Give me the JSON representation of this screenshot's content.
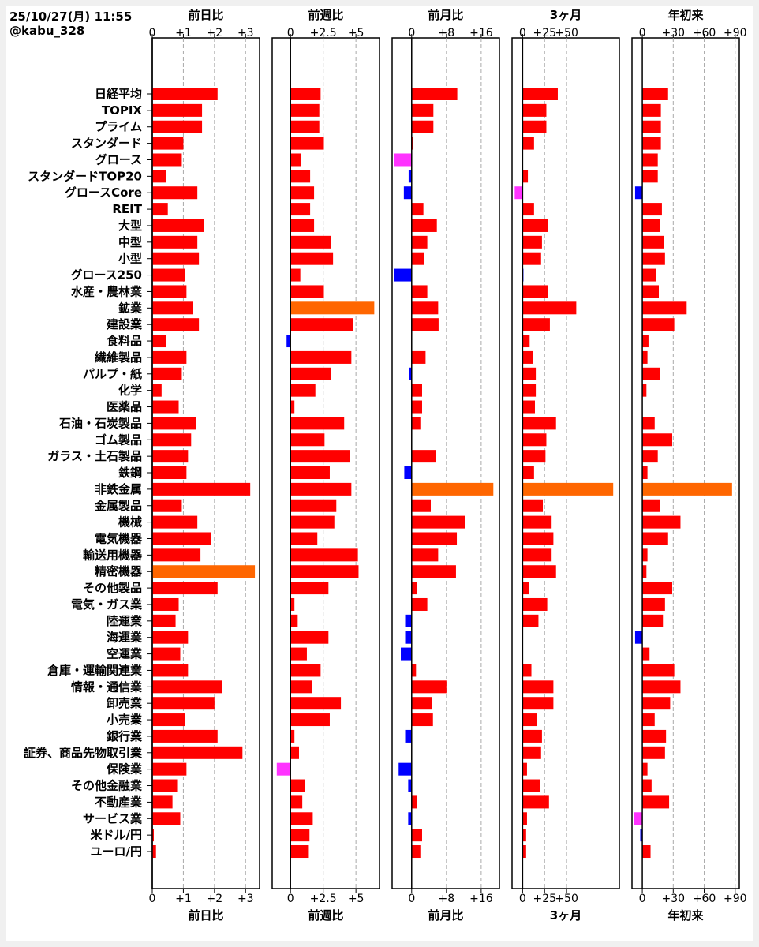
{
  "header": {
    "timestamp": "25/10/27(月) 11:55",
    "account": "@kabu_328"
  },
  "colors": {
    "positive": "#ff0000",
    "negative": "#0000ff",
    "max": "#ff6600",
    "min": "#ff33ff",
    "grid": "#aaaaaa"
  },
  "chart_data": {
    "type": "bar",
    "orientation": "horizontal",
    "categories": [
      "日経平均",
      "TOPIX",
      "プライム",
      "スタンダード",
      "グロース",
      "スタンダードTOP20",
      "グロースCore",
      "REIT",
      "大型",
      "中型",
      "小型",
      "グロース250",
      "水産・農林業",
      "鉱業",
      "建設業",
      "食料品",
      "繊維製品",
      "パルプ・紙",
      "化学",
      "医薬品",
      "石油・石炭製品",
      "ゴム製品",
      "ガラス・土石製品",
      "鉄鋼",
      "非鉄金属",
      "金属製品",
      "機械",
      "電気機器",
      "輸送用機器",
      "精密機器",
      "その他製品",
      "電気・ガス業",
      "陸運業",
      "海運業",
      "空運業",
      "倉庫・運輸関連業",
      "情報・通信業",
      "卸売業",
      "小売業",
      "銀行業",
      "証券、商品先物取引業",
      "保険業",
      "その他金融業",
      "不動産業",
      "サービス業",
      "米ドル/円",
      "ユーロ/円"
    ],
    "panels": [
      {
        "title": "前日比",
        "xlim": [
          0,
          3.45
        ],
        "ticks": [
          0,
          1,
          2,
          3
        ],
        "tick_labels": [
          "0",
          "+1",
          "+2",
          "+3"
        ],
        "values": [
          2.1,
          1.6,
          1.6,
          1.0,
          0.95,
          0.45,
          1.45,
          0.5,
          1.65,
          1.45,
          1.5,
          1.05,
          1.1,
          1.3,
          1.5,
          0.45,
          1.1,
          0.95,
          0.3,
          0.85,
          1.4,
          1.25,
          1.15,
          1.1,
          3.15,
          0.95,
          1.45,
          1.9,
          1.55,
          3.3,
          2.1,
          0.85,
          0.75,
          1.15,
          0.9,
          1.15,
          2.25,
          2.0,
          1.05,
          2.1,
          2.9,
          1.1,
          0.8,
          0.65,
          0.9,
          0.05,
          0.12
        ]
      },
      {
        "title": "前週比",
        "xlim": [
          -1.4,
          6.8
        ],
        "ticks": [
          0,
          2.5,
          5
        ],
        "tick_labels": [
          "0",
          "+2.5",
          "+5"
        ],
        "values": [
          2.3,
          2.2,
          2.2,
          2.55,
          0.8,
          1.5,
          1.8,
          1.5,
          1.8,
          3.1,
          3.25,
          0.75,
          2.55,
          6.4,
          4.8,
          -0.3,
          4.65,
          3.1,
          1.9,
          0.3,
          4.1,
          2.6,
          4.55,
          3.0,
          4.65,
          3.5,
          3.35,
          2.05,
          5.15,
          5.2,
          2.9,
          0.3,
          0.55,
          2.9,
          1.25,
          2.3,
          1.65,
          3.85,
          3.0,
          0.3,
          0.65,
          -1.05,
          1.1,
          0.9,
          1.7,
          1.45,
          1.4
        ]
      },
      {
        "title": "前月比",
        "xlim": [
          -4.5,
          20.2
        ],
        "ticks": [
          0,
          8,
          16
        ],
        "tick_labels": [
          "0",
          "+8",
          "+16"
        ],
        "values": [
          10.5,
          5.0,
          5.0,
          0.3,
          -4.0,
          -0.7,
          -1.8,
          2.7,
          5.8,
          3.6,
          2.8,
          -4.0,
          3.6,
          6.1,
          6.2,
          0,
          3.2,
          -0.6,
          2.4,
          2.4,
          2.0,
          0,
          5.5,
          -1.7,
          18.8,
          4.4,
          12.3,
          10.4,
          6.1,
          10.2,
          1.2,
          3.6,
          -1.5,
          -1.5,
          -2.5,
          1.0,
          8.0,
          4.6,
          4.9,
          -1.5,
          0,
          -3.0,
          -0.8,
          1.3,
          -0.8,
          2.4,
          2.0
        ]
      },
      {
        "title": "3ヶ月",
        "xlim": [
          -12,
          110
        ],
        "ticks": [
          0,
          25,
          50
        ],
        "tick_labels": [
          "0",
          "+25",
          "+50"
        ],
        "values": [
          40,
          27,
          27,
          13,
          0,
          6,
          -9,
          13,
          29,
          22,
          21,
          -0.4,
          29,
          61,
          31,
          8,
          12,
          15,
          15,
          14,
          38,
          27,
          26,
          13,
          103,
          23,
          33,
          35,
          33,
          38,
          7,
          28,
          18,
          0,
          0,
          10,
          35,
          35,
          16,
          22,
          21,
          5,
          20,
          30,
          5,
          4,
          4
        ]
      },
      {
        "title": "年初来",
        "xlim": [
          -10,
          94
        ],
        "ticks": [
          0,
          30,
          60,
          90
        ],
        "tick_labels": [
          "0",
          "+30",
          "+60",
          "+90"
        ],
        "values": [
          25,
          18,
          18,
          18,
          15,
          15,
          -7,
          19,
          17,
          21,
          22,
          13,
          16,
          43,
          31,
          6,
          5,
          17,
          4,
          0,
          12,
          29,
          15,
          5,
          87,
          17,
          37,
          25,
          5,
          4,
          29,
          22,
          20,
          -7,
          7,
          31,
          37,
          27,
          12,
          23,
          22,
          5,
          9,
          26,
          -8,
          -2,
          8
        ]
      }
    ]
  }
}
